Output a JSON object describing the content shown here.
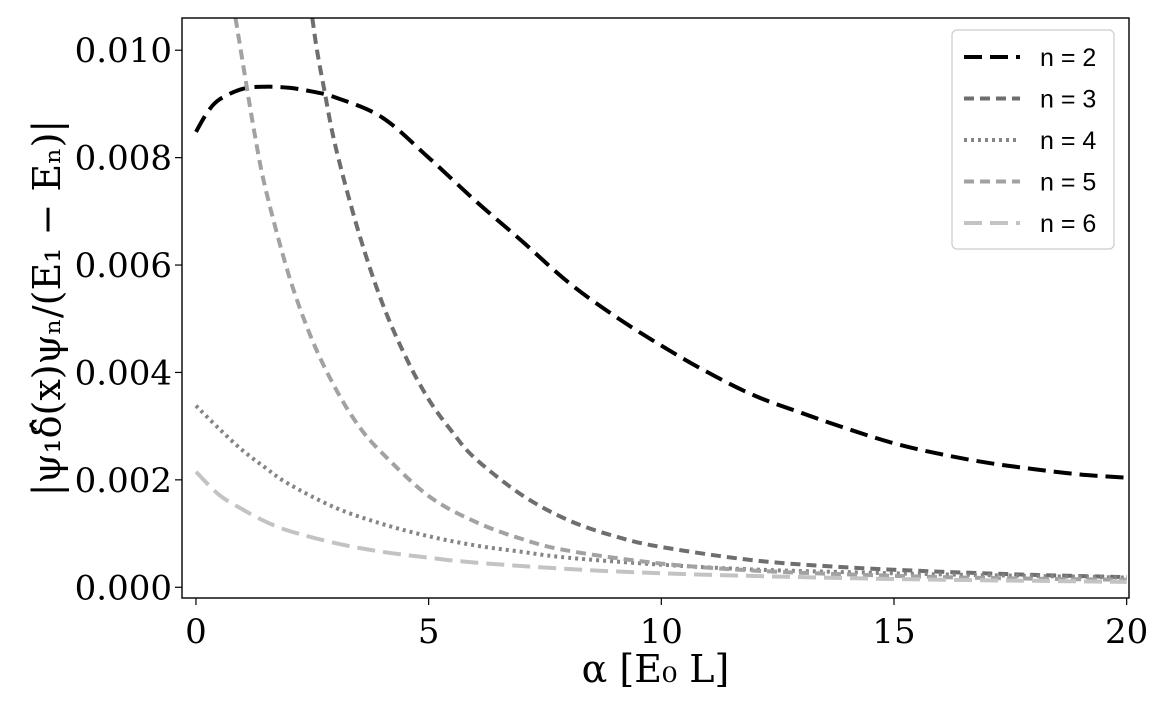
{
  "chart_data": {
    "type": "line",
    "xlabel": "α [E₀ L]",
    "ylabel": "|ψ₁δ̂(x)ψₙ/(E₁ − Eₙ)|",
    "xlim": [
      -0.3,
      20.05
    ],
    "ylim": [
      -0.0002,
      0.0106
    ],
    "xticks": [
      0,
      5,
      10,
      15,
      20
    ],
    "xtick_labels": [
      "0",
      "5",
      "10",
      "15",
      "20"
    ],
    "yticks": [
      0.0,
      0.002,
      0.004,
      0.006,
      0.008,
      0.01
    ],
    "ytick_labels": [
      "0.000",
      "0.002",
      "0.004",
      "0.006",
      "0.008",
      "0.010"
    ],
    "grid": false,
    "legend_position": "top-right",
    "series": [
      {
        "name": "n = 2",
        "color": "#000000",
        "dash": "long-dash",
        "x": [
          0,
          0.25,
          0.5,
          1.0,
          1.5,
          2.0,
          2.5,
          3.0,
          4.0,
          5.0,
          6.0,
          7.0,
          8.0,
          9.0,
          10.0,
          11.0,
          12.0,
          13.0,
          14.0,
          15.0,
          16.0,
          17.0,
          18.0,
          19.0,
          20.0
        ],
        "values": [
          0.00848,
          0.00885,
          0.00908,
          0.00928,
          0.00932,
          0.0093,
          0.00923,
          0.00912,
          0.00875,
          0.008,
          0.0072,
          0.00645,
          0.00568,
          0.00505,
          0.0045,
          0.004,
          0.00357,
          0.00325,
          0.00295,
          0.00268,
          0.00248,
          0.00232,
          0.0022,
          0.0021,
          0.00204
        ]
      },
      {
        "name": "n = 3",
        "color": "#6e6e6e",
        "dash": "dash",
        "x": [
          2.5,
          2.6,
          2.75,
          3.0,
          3.5,
          4.0,
          4.5,
          5.0,
          5.5,
          6.0,
          7.0,
          8.0,
          9.0,
          10.0,
          12.0,
          14.0,
          16.0,
          18.0,
          20.0
        ],
        "values": [
          0.0106,
          0.01,
          0.0093,
          0.0082,
          0.0066,
          0.0053,
          0.0043,
          0.0035,
          0.0029,
          0.0024,
          0.00172,
          0.00125,
          0.00095,
          0.00075,
          0.0005,
          0.00037,
          0.00029,
          0.00023,
          0.00019
        ]
      },
      {
        "name": "n = 4",
        "color": "#858585",
        "dash": "dot",
        "x": [
          0,
          0.5,
          1.0,
          1.5,
          2.0,
          3.0,
          4.0,
          5.0,
          6.0,
          7.0,
          8.0,
          10.0,
          12.0,
          14.0,
          16.0,
          18.0,
          20.0
        ],
        "values": [
          0.00338,
          0.00295,
          0.00255,
          0.00222,
          0.00192,
          0.00148,
          0.00118,
          0.00095,
          0.00078,
          0.00066,
          0.00055,
          0.00042,
          0.00033,
          0.00028,
          0.00024,
          0.00021,
          0.00018
        ]
      },
      {
        "name": "n = 5",
        "color": "#a2a2a2",
        "dash": "dash",
        "x": [
          0.85,
          1.0,
          1.25,
          1.5,
          2.0,
          2.5,
          3.0,
          3.5,
          4.0,
          5.0,
          6.0,
          7.0,
          8.0,
          10.0,
          12.0,
          14.0,
          16.0,
          18.0,
          20.0
        ],
        "values": [
          0.0106,
          0.0098,
          0.0085,
          0.0074,
          0.0058,
          0.0046,
          0.0037,
          0.003,
          0.0025,
          0.0017,
          0.00122,
          0.0009,
          0.00068,
          0.00044,
          0.00031,
          0.00024,
          0.00019,
          0.00016,
          0.00014
        ]
      },
      {
        "name": "n = 6",
        "color": "#c3c3c3",
        "dash": "long-dash",
        "x": [
          0,
          0.5,
          1.0,
          1.5,
          2.0,
          3.0,
          4.0,
          5.0,
          6.0,
          8.0,
          10.0,
          12.0,
          14.0,
          16.0,
          18.0,
          20.0
        ],
        "values": [
          0.00215,
          0.00172,
          0.00145,
          0.00122,
          0.00105,
          0.00082,
          0.00066,
          0.00055,
          0.00046,
          0.00034,
          0.00026,
          0.00021,
          0.00017,
          0.00014,
          0.00012,
          0.0001
        ]
      }
    ]
  }
}
